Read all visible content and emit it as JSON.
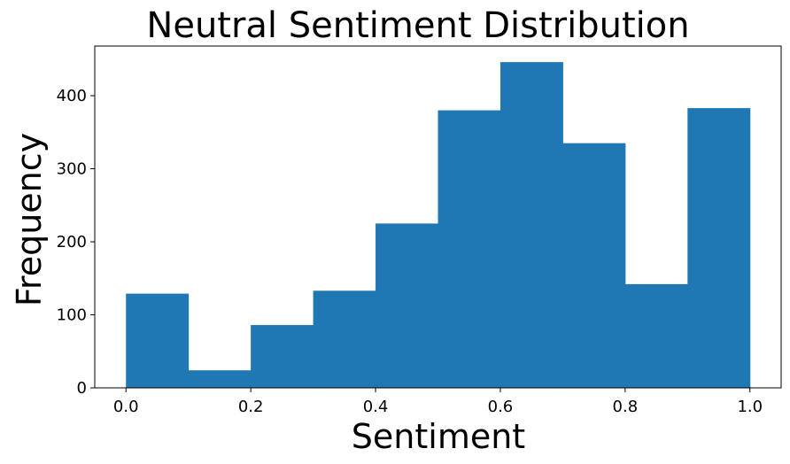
{
  "chart_data": {
    "type": "bar",
    "title": "Neutral Sentiment Distribution",
    "xlabel": "Sentiment",
    "ylabel": "Frequency",
    "bins": [
      {
        "x0": 0.0,
        "x1": 0.1,
        "count": 129
      },
      {
        "x0": 0.1,
        "x1": 0.2,
        "count": 24
      },
      {
        "x0": 0.2,
        "x1": 0.3,
        "count": 86
      },
      {
        "x0": 0.3,
        "x1": 0.4,
        "count": 133
      },
      {
        "x0": 0.4,
        "x1": 0.5,
        "count": 225
      },
      {
        "x0": 0.5,
        "x1": 0.6,
        "count": 380
      },
      {
        "x0": 0.6,
        "x1": 0.7,
        "count": 446
      },
      {
        "x0": 0.7,
        "x1": 0.8,
        "count": 335
      },
      {
        "x0": 0.8,
        "x1": 0.9,
        "count": 142
      },
      {
        "x0": 0.9,
        "x1": 1.0,
        "count": 383
      }
    ],
    "xlim": [
      -0.05,
      1.05
    ],
    "ylim": [
      0,
      468
    ],
    "xticks": [
      "0.0",
      "0.2",
      "0.4",
      "0.6",
      "0.8",
      "1.0"
    ],
    "yticks": [
      "0",
      "100",
      "200",
      "300",
      "400"
    ],
    "grid": false,
    "color": "#1f77b4"
  }
}
